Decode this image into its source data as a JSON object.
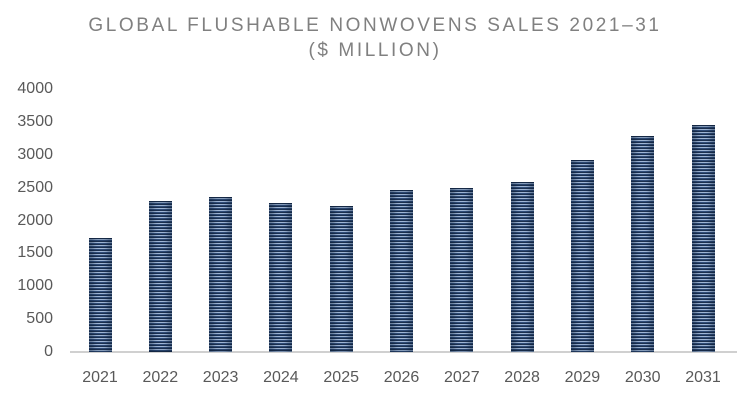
{
  "chart_data": {
    "type": "bar",
    "title": "GLOBAL FLUSHABLE NONWOVENS SALES 2021–31",
    "subtitle": "($ MILLION)",
    "xlabel": "",
    "ylabel": "",
    "categories": [
      "2021",
      "2022",
      "2023",
      "2024",
      "2025",
      "2026",
      "2027",
      "2028",
      "2029",
      "2030",
      "2031"
    ],
    "values": [
      1730,
      2300,
      2350,
      2270,
      2220,
      2460,
      2490,
      2580,
      2920,
      3280,
      3450
    ],
    "ylim": [
      0,
      4000
    ],
    "yticks": [
      0,
      500,
      1000,
      1500,
      2000,
      2500,
      3000,
      3500,
      4000
    ],
    "ytick_labels": [
      "0",
      "500",
      "1000",
      "1500",
      "2000",
      "2500",
      "3000",
      "3500",
      "4000"
    ],
    "grid": false,
    "legend": null,
    "bar_color": "#2f4c78",
    "bar_style": "horizontal-striped navy gradient"
  }
}
